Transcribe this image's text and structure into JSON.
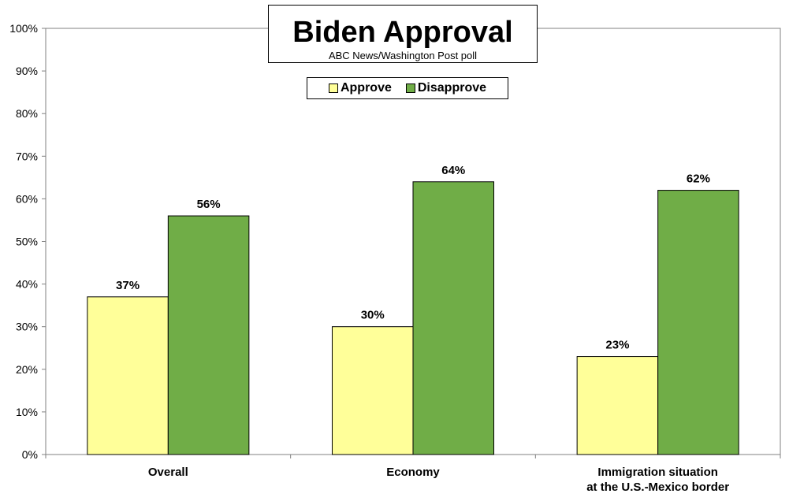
{
  "chart_data": {
    "type": "bar",
    "title": "Biden Approval",
    "subtitle": "ABC News/Washington Post poll",
    "categories": [
      "Overall",
      "Economy",
      "Immigration situation\nat the U.S.-Mexico border"
    ],
    "series": [
      {
        "name": "Approve",
        "values": [
          37,
          30,
          23
        ],
        "color": "#ffff99"
      },
      {
        "name": "Disapprove",
        "values": [
          56,
          64,
          62
        ],
        "color": "#70ad47"
      }
    ],
    "data_labels": [
      [
        "37%",
        "30%",
        "23%"
      ],
      [
        "56%",
        "64%",
        "62%"
      ]
    ],
    "ylim": [
      0,
      100
    ],
    "y_ticks": [
      "0%",
      "10%",
      "20%",
      "30%",
      "40%",
      "50%",
      "60%",
      "70%",
      "80%",
      "90%",
      "100%"
    ],
    "grid": false,
    "legend_position": "top-center"
  }
}
